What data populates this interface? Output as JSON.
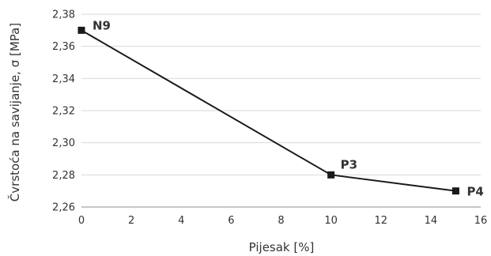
{
  "chart_data": {
    "type": "line",
    "title": "",
    "xlabel": "Pijesak [%]",
    "ylabel": "Čvrstoća na savijanje, σ [MPa]",
    "xlim": [
      0,
      16
    ],
    "ylim": [
      2.26,
      2.38
    ],
    "x_ticks": [
      0,
      2,
      4,
      6,
      8,
      10,
      12,
      14,
      16
    ],
    "y_ticks": [
      2.26,
      2.28,
      2.3,
      2.32,
      2.34,
      2.36,
      2.38
    ],
    "x_tick_labels": [
      "0",
      "2",
      "4",
      "6",
      "8",
      "10",
      "12",
      "14",
      "16"
    ],
    "y_tick_labels": [
      "2,26",
      "2,28",
      "2,30",
      "2,32",
      "2,34",
      "2,36",
      "2,38"
    ],
    "grid": "horizontal",
    "legend": "none",
    "series": [
      {
        "points": [
          {
            "x": 0,
            "y": 2.37,
            "label": "N9"
          },
          {
            "x": 10,
            "y": 2.28,
            "label": "P3"
          },
          {
            "x": 15,
            "y": 2.27,
            "label": "P4"
          }
        ]
      }
    ],
    "colors": {
      "line": "#1a1a1a",
      "marker": "#1a1a1a",
      "grid": "#d9d9d9",
      "axis": "#8c8c8c"
    }
  }
}
